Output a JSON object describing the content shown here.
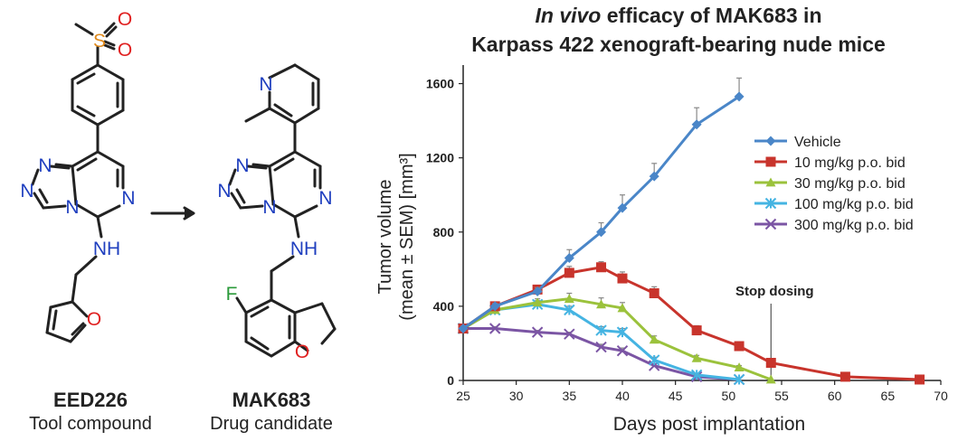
{
  "compounds": [
    {
      "name": "EED226",
      "role": "Tool compound"
    },
    {
      "name": "MAK683",
      "role": "Drug candidate"
    }
  ],
  "atom_labels": {
    "sulfur": "S",
    "oxygen": "O",
    "nitrogen": "N",
    "amine": "NH",
    "fluorine": "F"
  },
  "chart_data": {
    "type": "line",
    "title_italic": "In vivo",
    "title_rest": " efficacy of MAK683 in",
    "title_line2": "Karpass 422 xenograft-bearing nude mice",
    "xlabel": "Days post implantation",
    "ylabel_line1": "Tumor volume",
    "ylabel_line2": "(mean ± SEM) [mm³]",
    "xlim": [
      25,
      70
    ],
    "ylim": [
      0,
      1700
    ],
    "xticks": [
      25,
      30,
      35,
      40,
      45,
      50,
      55,
      60,
      65,
      70
    ],
    "yticks": [
      0,
      400,
      800,
      1200,
      1600
    ],
    "annotation": {
      "text": "Stop dosing",
      "x": 54
    },
    "series": [
      {
        "name": "Vehicle",
        "color": "#4a86c8",
        "marker": "diamond",
        "x": [
          25,
          28,
          32,
          35,
          38,
          40,
          43,
          47,
          51
        ],
        "y": [
          280,
          400,
          480,
          660,
          800,
          930,
          1100,
          1380,
          1530
        ],
        "err": [
          0,
          15,
          20,
          45,
          50,
          70,
          70,
          90,
          100
        ]
      },
      {
        "name": "10 mg/kg p.o. bid",
        "color": "#c8342c",
        "marker": "square",
        "x": [
          25,
          28,
          32,
          35,
          38,
          40,
          43,
          47,
          51,
          54,
          61,
          68
        ],
        "y": [
          280,
          400,
          490,
          580,
          610,
          550,
          470,
          270,
          185,
          95,
          20,
          5
        ],
        "err": [
          0,
          15,
          20,
          35,
          30,
          35,
          35,
          25,
          20,
          10,
          5,
          0
        ]
      },
      {
        "name": "30 mg/kg p.o. bid",
        "color": "#9bc23c",
        "marker": "triangle",
        "x": [
          25,
          28,
          32,
          35,
          38,
          40,
          43,
          47,
          51,
          54
        ],
        "y": [
          280,
          380,
          420,
          440,
          410,
          390,
          220,
          120,
          70,
          5
        ],
        "err": [
          0,
          15,
          20,
          30,
          35,
          30,
          20,
          15,
          10,
          0
        ]
      },
      {
        "name": "100 mg/kg p.o. bid",
        "color": "#45b4e2",
        "marker": "cross",
        "x": [
          25,
          28,
          32,
          35,
          38,
          40,
          43,
          47,
          51
        ],
        "y": [
          280,
          380,
          410,
          380,
          270,
          260,
          110,
          30,
          5
        ],
        "err": [
          0,
          15,
          20,
          20,
          20,
          20,
          15,
          5,
          0
        ]
      },
      {
        "name": "300 mg/kg p.o. bid",
        "color": "#7b55a4",
        "marker": "x",
        "x": [
          25,
          28,
          32,
          35,
          38,
          40,
          43,
          47,
          51
        ],
        "y": [
          280,
          280,
          260,
          250,
          180,
          160,
          80,
          20,
          5
        ],
        "err": [
          0,
          10,
          10,
          10,
          15,
          15,
          10,
          5,
          0
        ]
      }
    ]
  }
}
